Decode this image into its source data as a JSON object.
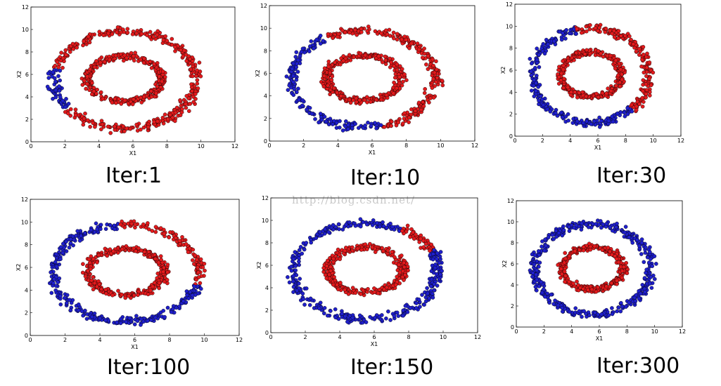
{
  "watermark": "http://blog.csdn.net/",
  "colors": {
    "inner": "#e31a1c",
    "outer_blue": "#1f1fcc",
    "outer_red": "#e31a1c",
    "edge": "#000000"
  },
  "chart_data": [
    {
      "type": "scatter",
      "caption": "Iter:1",
      "xlabel": "X1",
      "ylabel": "X2",
      "xlim": [
        0,
        12
      ],
      "ylim": [
        0,
        12
      ],
      "xticks": [
        0,
        2,
        4,
        6,
        8,
        10,
        12
      ],
      "yticks": [
        0,
        2,
        4,
        6,
        8,
        10,
        12
      ],
      "grid": false,
      "series": [
        {
          "ring": "inner",
          "center": [
            5.5,
            5.6
          ],
          "radius": 2.0,
          "color": "red"
        },
        {
          "ring": "outer",
          "center": [
            5.5,
            5.5
          ],
          "radius": 4.2,
          "blue_arc_deg": [
            165,
            215
          ]
        }
      ]
    },
    {
      "type": "scatter",
      "caption": "Iter:10",
      "xlabel": "X1",
      "ylabel": "X2",
      "xlim": [
        0,
        12
      ],
      "ylim": [
        0,
        12
      ],
      "xticks": [
        0,
        2,
        4,
        6,
        8,
        10,
        12
      ],
      "yticks": [
        0,
        2,
        4,
        6,
        8,
        10,
        12
      ],
      "grid": false,
      "series": [
        {
          "ring": "inner",
          "center": [
            5.5,
            5.6
          ],
          "radius": 2.0,
          "color": "red"
        },
        {
          "ring": "outer",
          "center": [
            5.5,
            5.5
          ],
          "radius": 4.2,
          "blue_arc_deg": [
            120,
            285
          ]
        }
      ]
    },
    {
      "type": "scatter",
      "caption": "Iter:30",
      "xlabel": "X1",
      "ylabel": "X2",
      "xlim": [
        0,
        12
      ],
      "ylim": [
        0,
        12
      ],
      "xticks": [
        0,
        2,
        4,
        6,
        8,
        10,
        12
      ],
      "yticks": [
        0,
        2,
        4,
        6,
        8,
        10,
        12
      ],
      "grid": false,
      "series": [
        {
          "ring": "inner",
          "center": [
            5.5,
            5.6
          ],
          "radius": 2.0,
          "color": "red"
        },
        {
          "ring": "outer",
          "center": [
            5.5,
            5.5
          ],
          "radius": 4.2,
          "blue_arc_deg": [
            105,
            315
          ]
        }
      ]
    },
    {
      "type": "scatter",
      "caption": "Iter:100",
      "xlabel": "X1",
      "ylabel": "X2",
      "xlim": [
        0,
        12
      ],
      "ylim": [
        0,
        12
      ],
      "xticks": [
        0,
        2,
        4,
        6,
        8,
        10,
        12
      ],
      "yticks": [
        0,
        2,
        4,
        6,
        8,
        10,
        12
      ],
      "grid": false,
      "series": [
        {
          "ring": "inner",
          "center": [
            5.5,
            5.6
          ],
          "radius": 2.0,
          "color": "red"
        },
        {
          "ring": "outer",
          "center": [
            5.5,
            5.5
          ],
          "radius": 4.2,
          "blue_arc_deg": [
            95,
            345
          ]
        }
      ]
    },
    {
      "type": "scatter",
      "caption": "Iter:150",
      "xlabel": "X1",
      "ylabel": "X2",
      "xlim": [
        0,
        12
      ],
      "ylim": [
        0,
        12
      ],
      "xticks": [
        0,
        2,
        4,
        6,
        8,
        10,
        12
      ],
      "yticks": [
        0,
        2,
        4,
        6,
        8,
        10,
        12
      ],
      "grid": false,
      "series": [
        {
          "ring": "inner",
          "center": [
            5.5,
            5.6
          ],
          "radius": 2.0,
          "color": "red"
        },
        {
          "ring": "outer",
          "center": [
            5.5,
            5.5
          ],
          "radius": 4.2,
          "blue_arc_deg": [
            60,
            385
          ]
        }
      ]
    },
    {
      "type": "scatter",
      "caption": "Iter:300",
      "xlabel": "X1",
      "ylabel": "X2",
      "xlim": [
        0,
        12
      ],
      "ylim": [
        0,
        12
      ],
      "xticks": [
        0,
        2,
        4,
        6,
        8,
        10,
        12
      ],
      "yticks": [
        0,
        2,
        4,
        6,
        8,
        10,
        12
      ],
      "grid": false,
      "series": [
        {
          "ring": "inner",
          "center": [
            5.5,
            5.6
          ],
          "radius": 2.0,
          "color": "red"
        },
        {
          "ring": "outer",
          "center": [
            5.5,
            5.5
          ],
          "radius": 4.2,
          "blue_arc_deg": [
            0,
            360
          ]
        }
      ]
    }
  ]
}
